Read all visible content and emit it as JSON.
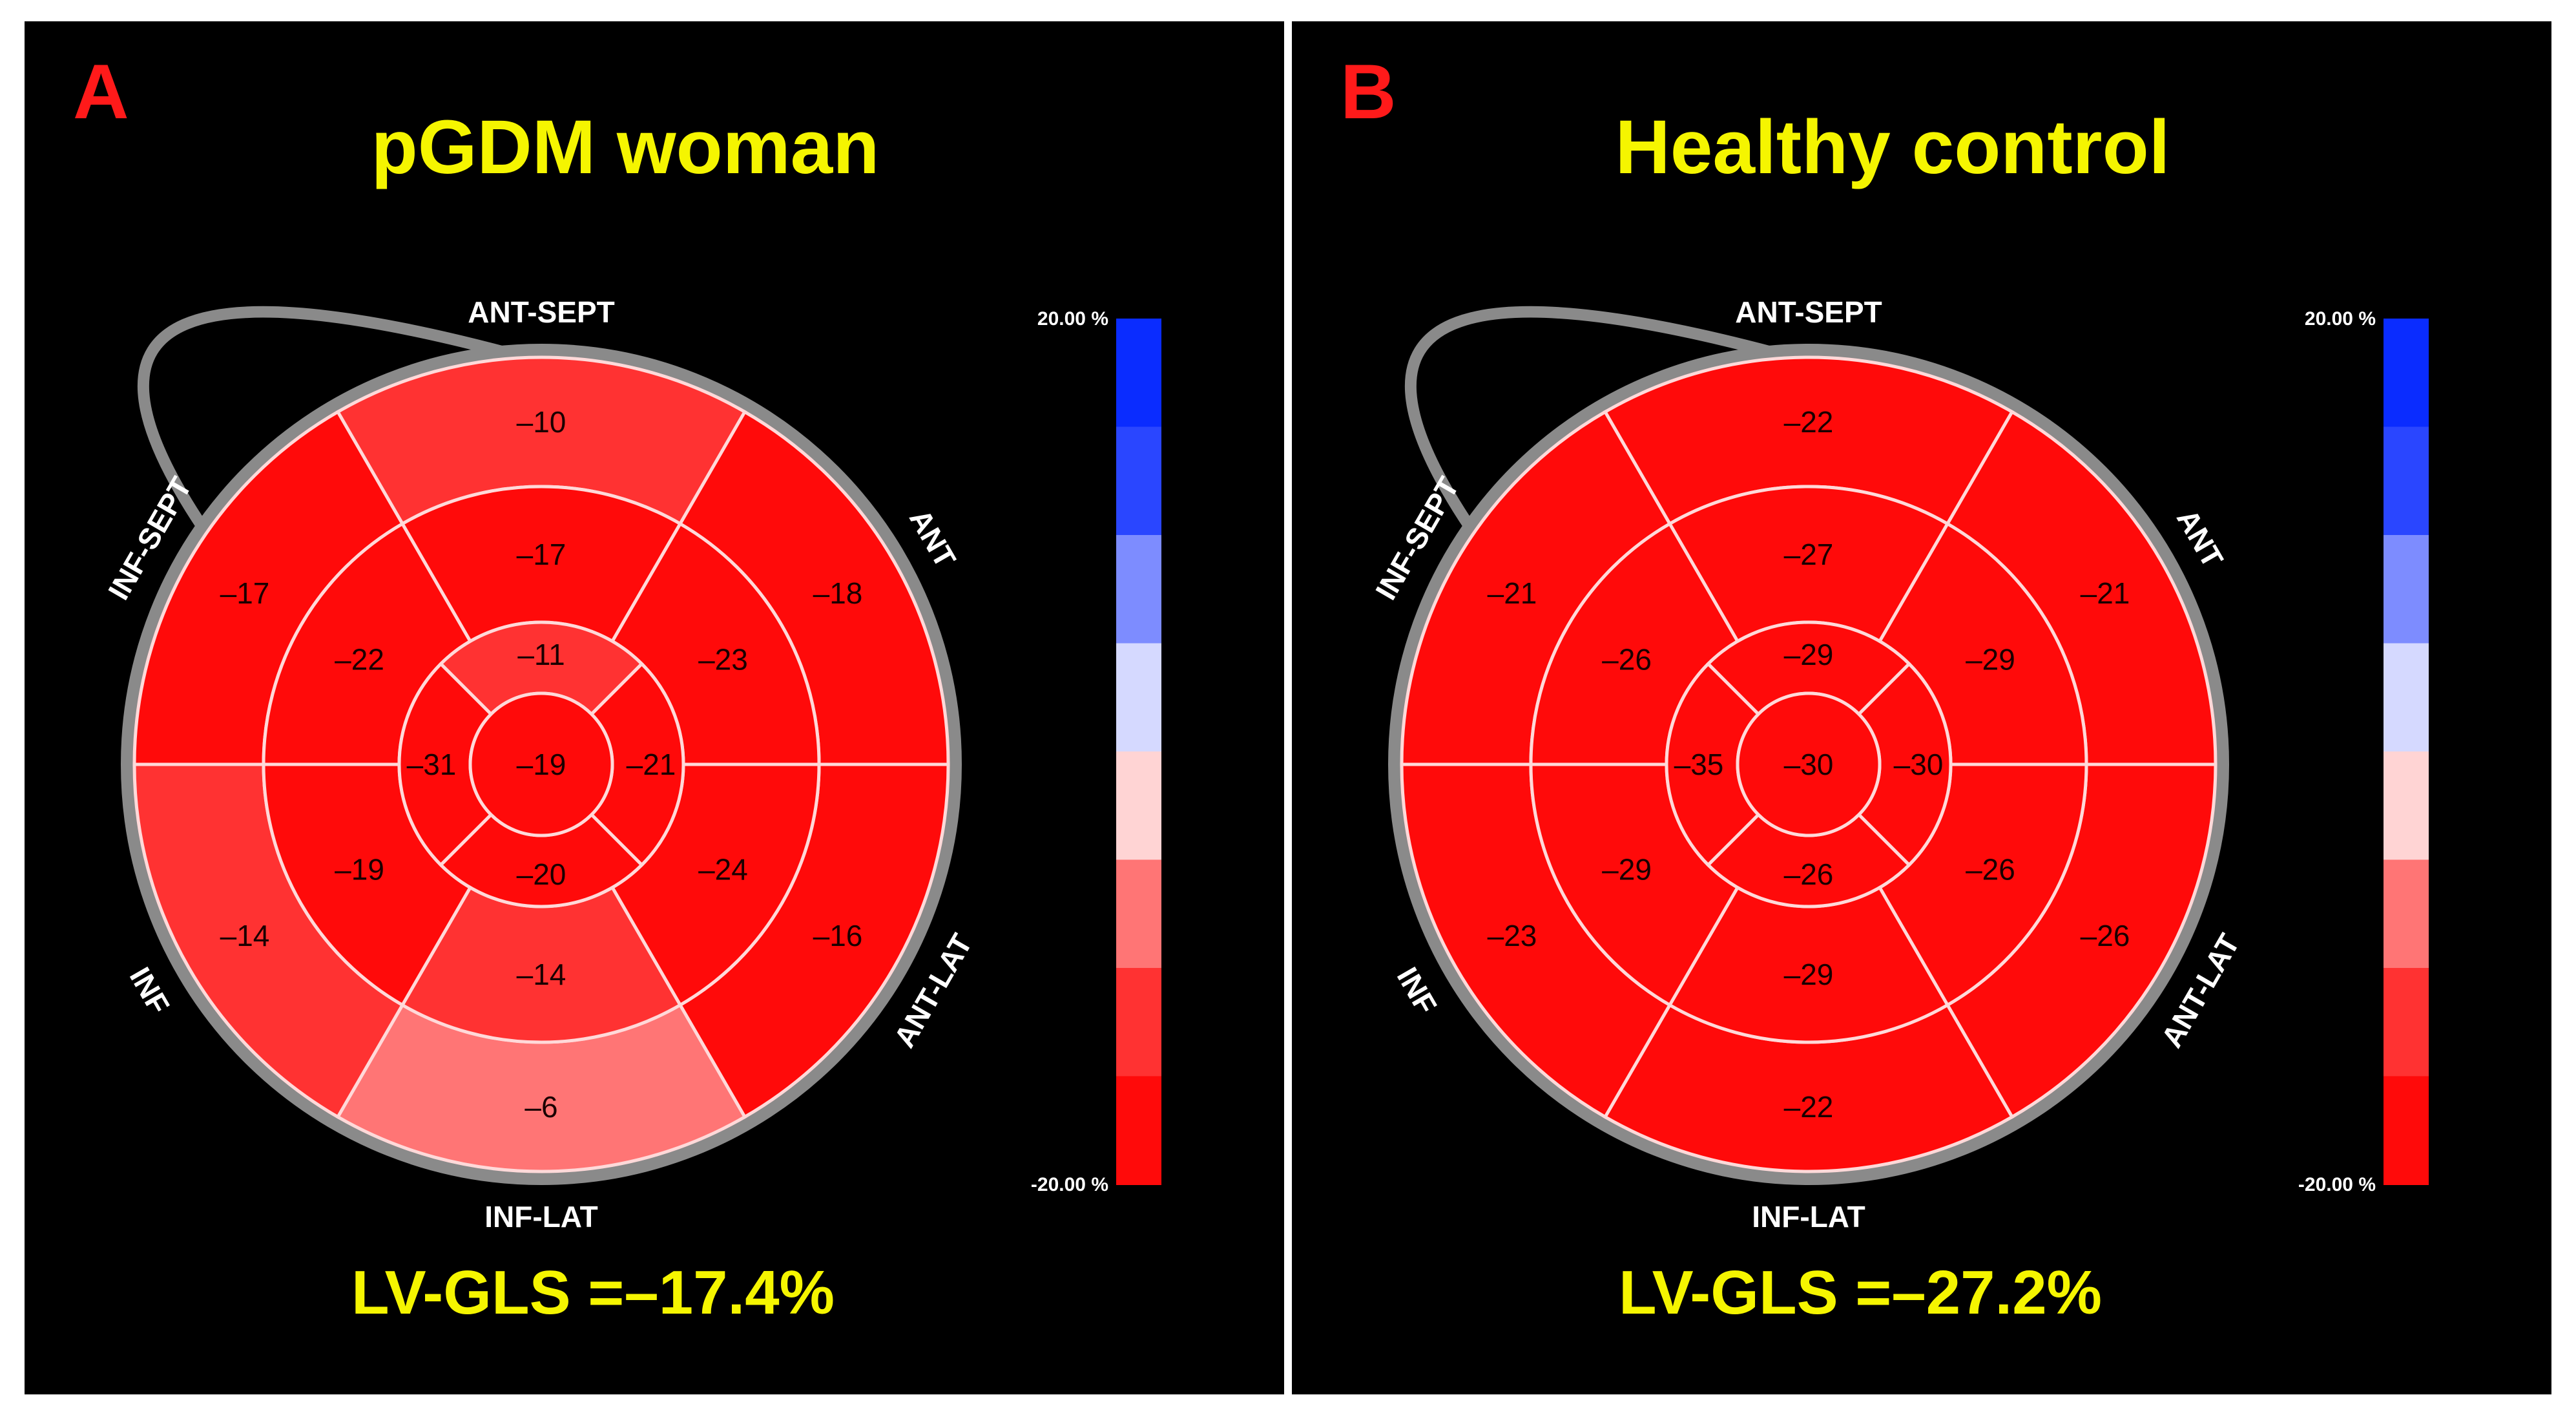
{
  "chart_data": [
    {
      "type": "bullseye",
      "panel_letter": "A",
      "title": "pGDM woman",
      "region_labels": [
        "ANT-SEPT",
        "ANT",
        "ANT-LAT",
        "INF-LAT",
        "INF",
        "INF-SEPT"
      ],
      "segments": {
        "basal": [
          -10,
          -18,
          -16,
          -6,
          -14,
          -17
        ],
        "mid": [
          -17,
          -23,
          -24,
          -14,
          -19,
          -22
        ],
        "apical": [
          -11,
          -21,
          -20,
          -31
        ],
        "apex": -19
      },
      "scale": {
        "max_label": "20.00 %",
        "min_label": "-20.00 %",
        "range": [
          -20,
          20
        ]
      },
      "gls_text": "LV-GLS =–17.4%",
      "gls_value": -17.4
    },
    {
      "type": "bullseye",
      "panel_letter": "B",
      "title": "Healthy control",
      "region_labels": [
        "ANT-SEPT",
        "ANT",
        "ANT-LAT",
        "INF-LAT",
        "INF",
        "INF-SEPT"
      ],
      "segments": {
        "basal": [
          -22,
          -21,
          -26,
          -22,
          -23,
          -21
        ],
        "mid": [
          -27,
          -29,
          -26,
          -29,
          -29,
          -26
        ],
        "apical": [
          -29,
          -30,
          -26,
          -35
        ],
        "apex": -30
      },
      "scale": {
        "max_label": "20.00 %",
        "min_label": "-20.00 %",
        "range": [
          -20,
          20
        ]
      },
      "gls_text": "LV-GLS =–27.2%",
      "gls_value": -27.2
    }
  ],
  "colors": {
    "panel_bg": "#000000",
    "title": "#f5f500",
    "letter": "#ff1a1a",
    "ring": "#8a8a8a",
    "segment_line": "#ffd9d9",
    "label": "#ffffff",
    "value_text": "#1a0000",
    "scale": [
      "#0a2cff",
      "#2a46ff",
      "#7d8cff",
      "#d5d9ff",
      "#ffd4d4",
      "#ff7575",
      "#ff3232",
      "#ff0a0a"
    ]
  }
}
